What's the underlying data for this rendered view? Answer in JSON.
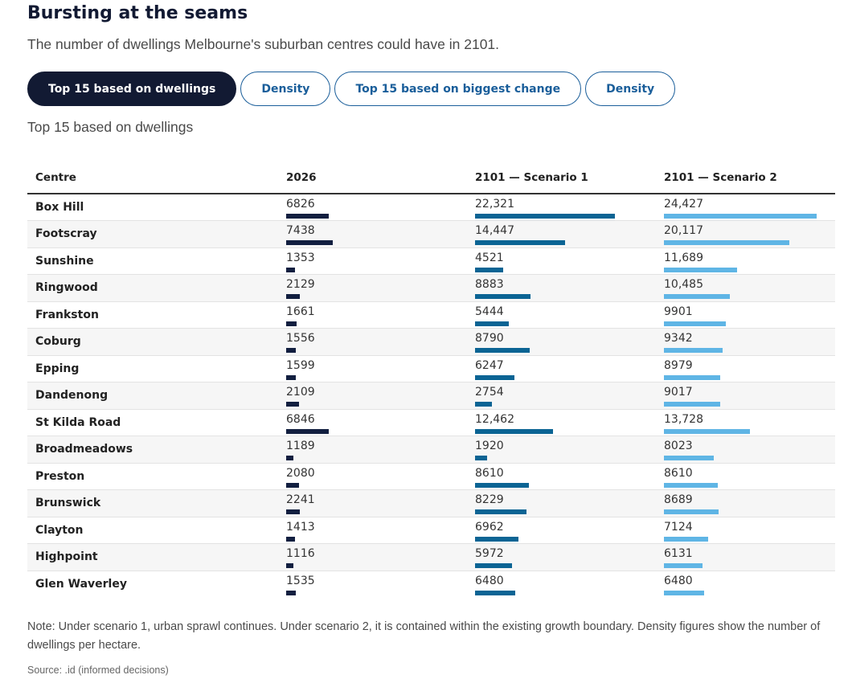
{
  "header": {
    "title": "Bursting at the seams",
    "subtitle": "The number of dwellings Melbourne's suburban centres could have in 2101."
  },
  "tabs": [
    {
      "label": "Top 15 based on dwellings",
      "active": true
    },
    {
      "label": "Density",
      "active": false
    },
    {
      "label": "Top 15 based on biggest change",
      "active": false
    },
    {
      "label": "Density",
      "active": false
    }
  ],
  "view_label": "Top 15 based on dwellings",
  "colors": {
    "s2026": "#121f40",
    "scenario1": "#0b6494",
    "scenario2": "#5fb5e5"
  },
  "chart_data": {
    "type": "table",
    "columns": [
      "Centre",
      "2026",
      "2101 — Scenario 1",
      "2101 — Scenario 2"
    ],
    "max_value": 24427,
    "rows": [
      {
        "centre": "Box Hill",
        "values": [
          6826,
          22321,
          24427
        ]
      },
      {
        "centre": "Footscray",
        "values": [
          7438,
          14447,
          20117
        ]
      },
      {
        "centre": "Sunshine",
        "values": [
          1353,
          4521,
          11689
        ]
      },
      {
        "centre": "Ringwood",
        "values": [
          2129,
          8883,
          10485
        ]
      },
      {
        "centre": "Frankston",
        "values": [
          1661,
          5444,
          9901
        ]
      },
      {
        "centre": "Coburg",
        "values": [
          1556,
          8790,
          9342
        ]
      },
      {
        "centre": "Epping",
        "values": [
          1599,
          6247,
          8979
        ]
      },
      {
        "centre": "Dandenong",
        "values": [
          2109,
          2754,
          9017
        ]
      },
      {
        "centre": "St Kilda Road",
        "values": [
          6846,
          12462,
          13728
        ]
      },
      {
        "centre": "Broadmeadows",
        "values": [
          1189,
          1920,
          8023
        ]
      },
      {
        "centre": "Preston",
        "values": [
          2080,
          8610,
          8610
        ]
      },
      {
        "centre": "Brunswick",
        "values": [
          2241,
          8229,
          8689
        ]
      },
      {
        "centre": "Clayton",
        "values": [
          1413,
          6962,
          7124
        ]
      },
      {
        "centre": "Highpoint",
        "values": [
          1116,
          5972,
          6131
        ]
      },
      {
        "centre": "Glen Waverley",
        "values": [
          1535,
          6480,
          6480
        ]
      }
    ]
  },
  "footer": {
    "note": "Note: Under scenario 1, urban sprawl continues. Under scenario 2, it is contained within the existing growth boundary. Density figures show the number of dwellings per hectare.",
    "source": "Source: .id (informed decisions)"
  }
}
